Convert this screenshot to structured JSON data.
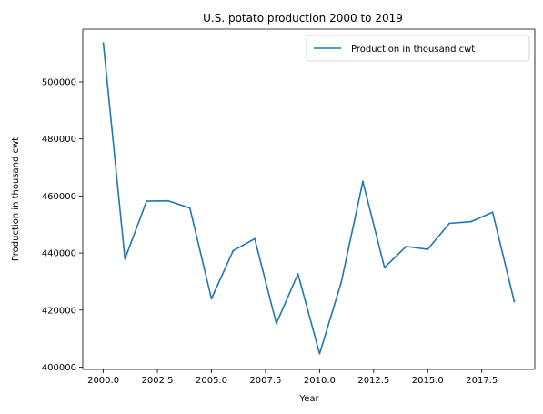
{
  "chart_data": {
    "type": "line",
    "title": "U.S. potato production 2000 to 2019",
    "xlabel": "Year",
    "ylabel": "Production in thousand cwt",
    "xlim": [
      1999.05,
      2019.95
    ],
    "ylim": [
      399200,
      518500
    ],
    "x_ticks": [
      2000.0,
      2002.5,
      2005.0,
      2007.5,
      2010.0,
      2012.5,
      2015.0,
      2017.5
    ],
    "x_tick_labels": [
      "2000.0",
      "2002.5",
      "2005.0",
      "2007.5",
      "2010.0",
      "2012.5",
      "2015.0",
      "2017.5"
    ],
    "y_ticks": [
      400000,
      420000,
      440000,
      460000,
      480000,
      500000
    ],
    "y_tick_labels": [
      "400000",
      "420000",
      "440000",
      "460000",
      "480000",
      "500000"
    ],
    "grid": false,
    "legend_position": "top-right",
    "colors": {
      "line": "#1f77b4"
    },
    "series": [
      {
        "name": "Production in thousand cwt",
        "x": [
          2000,
          2001,
          2002,
          2003,
          2004,
          2005,
          2006,
          2007,
          2008,
          2009,
          2010,
          2011,
          2012,
          2013,
          2014,
          2015,
          2016,
          2017,
          2018,
          2019
        ],
        "values": [
          513600,
          437900,
          458200,
          458300,
          455800,
          424000,
          440800,
          445000,
          415300,
          432700,
          404700,
          429700,
          465100,
          434900,
          442300,
          441300,
          450400,
          451000,
          454300,
          423000
        ]
      }
    ]
  }
}
